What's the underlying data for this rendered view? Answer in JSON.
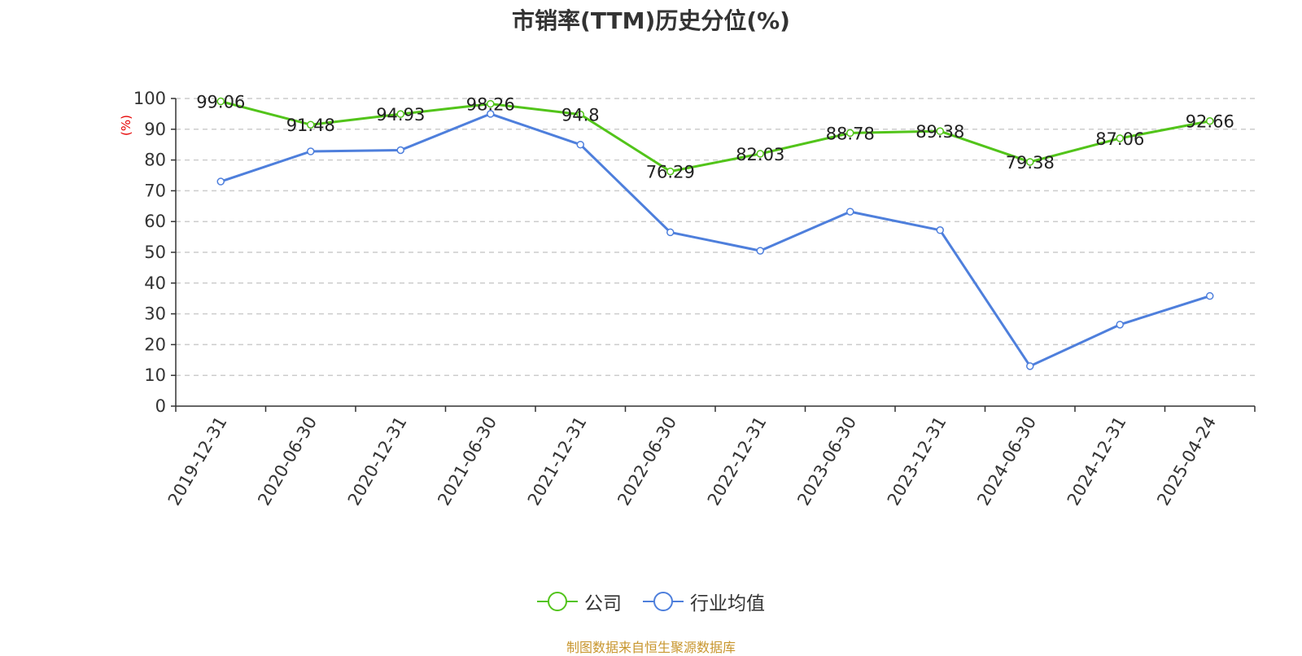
{
  "chart_data": {
    "type": "line",
    "title": "市销率(TTM)历史分位(%)",
    "ylabel": "(%)",
    "xlabel": "",
    "ylim": [
      0,
      100
    ],
    "yticks": [
      0,
      10,
      20,
      30,
      40,
      50,
      60,
      70,
      80,
      90,
      100
    ],
    "grid": true,
    "legend_position": "bottom",
    "categories": [
      "2019-12-31",
      "2020-06-30",
      "2020-12-31",
      "2021-06-30",
      "2021-12-31",
      "2022-06-30",
      "2022-12-31",
      "2023-06-30",
      "2023-12-31",
      "2024-06-30",
      "2024-12-31",
      "2025-04-24"
    ],
    "series": [
      {
        "name": "公司",
        "color": "#52c41a",
        "values": [
          99.06,
          91.48,
          94.93,
          98.26,
          94.8,
          76.29,
          82.03,
          88.78,
          89.38,
          79.38,
          87.06,
          92.66
        ],
        "labels": [
          "99.06",
          "91.48",
          "94.93",
          "98.26",
          "94.8",
          "76.29",
          "82.03",
          "88.78",
          "89.38",
          "79.38",
          "87.06",
          "92.66"
        ]
      },
      {
        "name": "行业均值",
        "color": "#4e7fdc",
        "values": [
          73.0,
          82.8,
          83.2,
          95.0,
          85.0,
          56.5,
          50.5,
          63.2,
          57.2,
          13.0,
          26.5,
          35.8
        ]
      }
    ]
  },
  "source": "制图数据来自恒生聚源数据库"
}
